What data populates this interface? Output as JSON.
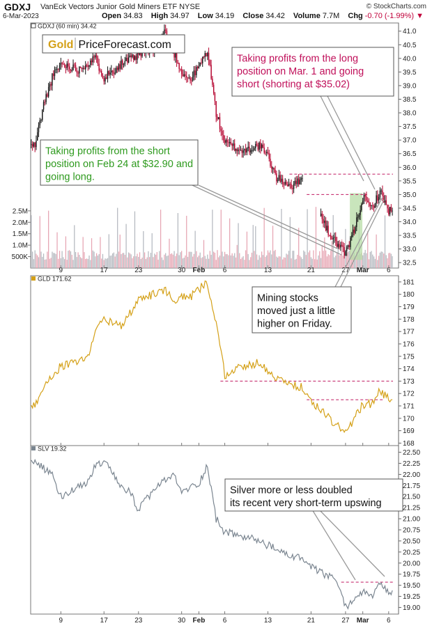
{
  "header": {
    "symbol": "GDXJ",
    "name": "VanEck Vectors Junior Gold Miners ETF  NYSE",
    "site": "© StockCharts.com",
    "date": "6-Mar-2023",
    "open_label": "Open",
    "open": "34.83",
    "high_label": "High",
    "high": "34.97",
    "low_label": "Low",
    "low": "34.19",
    "close_label": "Close",
    "close": "34.42",
    "volume_label": "Volume",
    "volume": "7.7M",
    "chg_label": "Chg",
    "chg": "-0.70 (-1.99%)"
  },
  "logo": {
    "part1": "Gold",
    "part2": "PriceForecast.com"
  },
  "colors": {
    "gold": "#d4a017",
    "silver": "#7a8590",
    "annot_red": "#c0105a",
    "annot_green": "#2e9a1e",
    "level_line": "#c01860",
    "up_candle": "#111111",
    "down_candle": "#b4002c",
    "zone_fill": "#b7dca6"
  },
  "chart_data": [
    {
      "type": "candlestick",
      "panel": "GDXJ (60 min)",
      "legend": "GDXJ (60 min) 34.42",
      "ylim": [
        32.3,
        41.3
      ],
      "yticks": [
        32.5,
        33.0,
        33.5,
        34.0,
        34.5,
        35.0,
        35.5,
        36.0,
        36.5,
        37.0,
        37.5,
        38.0,
        38.5,
        39.0,
        39.5,
        40.0,
        40.5,
        41.0
      ],
      "ytick_labels": [
        "32.5",
        "33.0",
        "33.5",
        "34.0",
        "34.5",
        "35.0",
        "35.5",
        "36.0",
        "36.5",
        "37.0",
        "37.5",
        "38.0",
        "38.5",
        "39.0",
        "39.5",
        "40.0",
        "40.5",
        "41.0"
      ],
      "xticks": [
        "9",
        "17",
        "23",
        "30",
        "Feb",
        "6",
        "13",
        "21",
        "27",
        "Mar",
        "6"
      ],
      "date_range": [
        "2023-01-04",
        "2023-03-06"
      ],
      "anchors": [
        [
          "2023-01-04",
          36.8
        ],
        [
          "2023-01-05",
          38.3
        ],
        [
          "2023-01-06",
          39.3
        ],
        [
          "2023-01-09",
          39.8
        ],
        [
          "2023-01-11",
          39.6
        ],
        [
          "2023-01-13",
          40.0
        ],
        [
          "2023-01-17",
          39.3
        ],
        [
          "2023-01-19",
          39.8
        ],
        [
          "2023-01-23",
          40.1
        ],
        [
          "2023-01-25",
          40.4
        ],
        [
          "2023-01-26",
          41.0
        ],
        [
          "2023-01-27",
          40.3
        ],
        [
          "2023-01-30",
          39.5
        ],
        [
          "2023-01-31",
          39.2
        ],
        [
          "2023-02-01",
          39.7
        ],
        [
          "2023-02-02",
          40.3
        ],
        [
          "2023-02-03",
          38.0
        ],
        [
          "2023-02-06",
          36.9
        ],
        [
          "2023-02-08",
          36.6
        ],
        [
          "2023-02-10",
          36.8
        ],
        [
          "2023-02-13",
          36.4
        ],
        [
          "2023-02-14",
          35.6
        ],
        [
          "2023-02-16",
          35.3
        ],
        [
          "2023-02-17",
          35.7
        ],
        [
          "2023-02-20",
          34.6
        ],
        [
          "2023-02-22",
          34.3
        ],
        [
          "2023-02-23",
          33.6
        ],
        [
          "2023-02-24",
          33.2
        ],
        [
          "2023-02-27",
          32.8
        ],
        [
          "2023-02-28",
          33.7
        ],
        [
          "2023-03-01",
          34.9
        ],
        [
          "2023-03-02",
          34.5
        ],
        [
          "2023-03-03",
          35.1
        ],
        [
          "2023-03-06",
          34.42
        ]
      ],
      "volume": {
        "ylim": [
          0,
          3500000
        ],
        "yticks": [
          500000,
          1000000,
          1500000,
          2000000,
          2500000
        ],
        "ytick_labels": [
          "500K",
          "1.0M",
          "1.5M",
          "2.0M",
          "2.5M"
        ]
      },
      "level_lines": [
        {
          "value": 35.75,
          "from": "2023-02-16",
          "to": "2023-03-06"
        },
        {
          "value": 35.0,
          "from": "2023-02-20",
          "to": "2023-03-01"
        }
      ],
      "zone": {
        "from": "2023-02-28",
        "to": "2023-03-01",
        "ymin": 32.6,
        "ymax": 35.05
      }
    },
    {
      "type": "line",
      "panel": "GLD",
      "legend": "GLD 171.62",
      "ylim": [
        167.8,
        181.5
      ],
      "yticks": [
        168,
        169,
        170,
        171,
        172,
        173,
        174,
        175,
        176,
        177,
        178,
        179,
        180,
        181
      ],
      "date_range": [
        "2023-01-04",
        "2023-03-06"
      ],
      "anchors": [
        [
          "2023-01-04",
          171.0
        ],
        [
          "2023-01-05",
          172.6
        ],
        [
          "2023-01-06",
          173.5
        ],
        [
          "2023-01-09",
          174.2
        ],
        [
          "2023-01-12",
          174.8
        ],
        [
          "2023-01-13",
          177.0
        ],
        [
          "2023-01-17",
          178.0
        ],
        [
          "2023-01-19",
          177.4
        ],
        [
          "2023-01-23",
          179.5
        ],
        [
          "2023-01-26",
          180.4
        ],
        [
          "2023-01-27",
          179.6
        ],
        [
          "2023-01-31",
          179.8
        ],
        [
          "2023-02-02",
          181.0
        ],
        [
          "2023-02-03",
          177.5
        ],
        [
          "2023-02-06",
          173.5
        ],
        [
          "2023-02-08",
          174.2
        ],
        [
          "2023-02-10",
          174.5
        ],
        [
          "2023-02-13",
          173.8
        ],
        [
          "2023-02-15",
          172.8
        ],
        [
          "2023-02-17",
          172.5
        ],
        [
          "2023-02-21",
          171.3
        ],
        [
          "2023-02-22",
          170.8
        ],
        [
          "2023-02-24",
          169.4
        ],
        [
          "2023-02-27",
          168.8
        ],
        [
          "2023-02-28",
          170.0
        ],
        [
          "2023-03-01",
          171.1
        ],
        [
          "2023-03-02",
          171.2
        ],
        [
          "2023-03-03",
          172.2
        ],
        [
          "2023-03-06",
          171.62
        ]
      ],
      "level_lines": [
        {
          "value": 173.0,
          "from": "2023-02-06",
          "to": "2023-03-06"
        },
        {
          "value": 171.5,
          "from": "2023-02-20",
          "to": "2023-03-03"
        }
      ]
    },
    {
      "type": "line",
      "panel": "SLV",
      "legend": "SLV 19.32",
      "ylim": [
        18.85,
        22.65
      ],
      "yticks": [
        19.0,
        19.25,
        19.5,
        19.75,
        20.0,
        20.25,
        20.5,
        20.75,
        21.0,
        21.25,
        21.5,
        21.75,
        22.0,
        22.25,
        22.5
      ],
      "ytick_labels": [
        "19.00",
        "19.25",
        "19.50",
        "19.75",
        "20.00",
        "20.25",
        "20.50",
        "20.75",
        "21.00",
        "21.25",
        "21.50",
        "21.75",
        "22.00",
        "22.25",
        "22.50"
      ],
      "date_range": [
        "2023-01-04",
        "2023-03-06"
      ],
      "anchors": [
        [
          "2023-01-04",
          22.3
        ],
        [
          "2023-01-06",
          22.0
        ],
        [
          "2023-01-09",
          21.5
        ],
        [
          "2023-01-12",
          21.8
        ],
        [
          "2023-01-13",
          22.2
        ],
        [
          "2023-01-17",
          22.3
        ],
        [
          "2023-01-19",
          21.7
        ],
        [
          "2023-01-20",
          21.6
        ],
        [
          "2023-01-23",
          21.2
        ],
        [
          "2023-01-25",
          21.7
        ],
        [
          "2023-01-27",
          22.0
        ],
        [
          "2023-01-30",
          21.6
        ],
        [
          "2023-02-01",
          21.8
        ],
        [
          "2023-02-02",
          22.2
        ],
        [
          "2023-02-03",
          21.0
        ],
        [
          "2023-02-06",
          20.7
        ],
        [
          "2023-02-08",
          20.6
        ],
        [
          "2023-02-10",
          20.5
        ],
        [
          "2023-02-13",
          20.4
        ],
        [
          "2023-02-15",
          20.2
        ],
        [
          "2023-02-17",
          20.1
        ],
        [
          "2023-02-21",
          19.9
        ],
        [
          "2023-02-23",
          19.7
        ],
        [
          "2023-02-24",
          19.6
        ],
        [
          "2023-02-27",
          19.0
        ],
        [
          "2023-02-28",
          19.2
        ],
        [
          "2023-03-01",
          19.35
        ],
        [
          "2023-03-02",
          19.25
        ],
        [
          "2023-03-03",
          19.5
        ],
        [
          "2023-03-06",
          19.32
        ]
      ],
      "level_lines": [
        {
          "value": 19.57,
          "from": "2023-02-27",
          "to": "2023-03-06"
        }
      ]
    }
  ],
  "annotations": {
    "profit_long": "Taking profits from the long position on Mar. 1 and going short (shorting at $35.02)",
    "profit_short": "Taking profits from the short position on Feb 24 at $32.90 and going long.",
    "mining": "Mining stocks moved just a little higher on Friday.",
    "silver": "Silver more or less doubled its recent very short-term upswing"
  }
}
